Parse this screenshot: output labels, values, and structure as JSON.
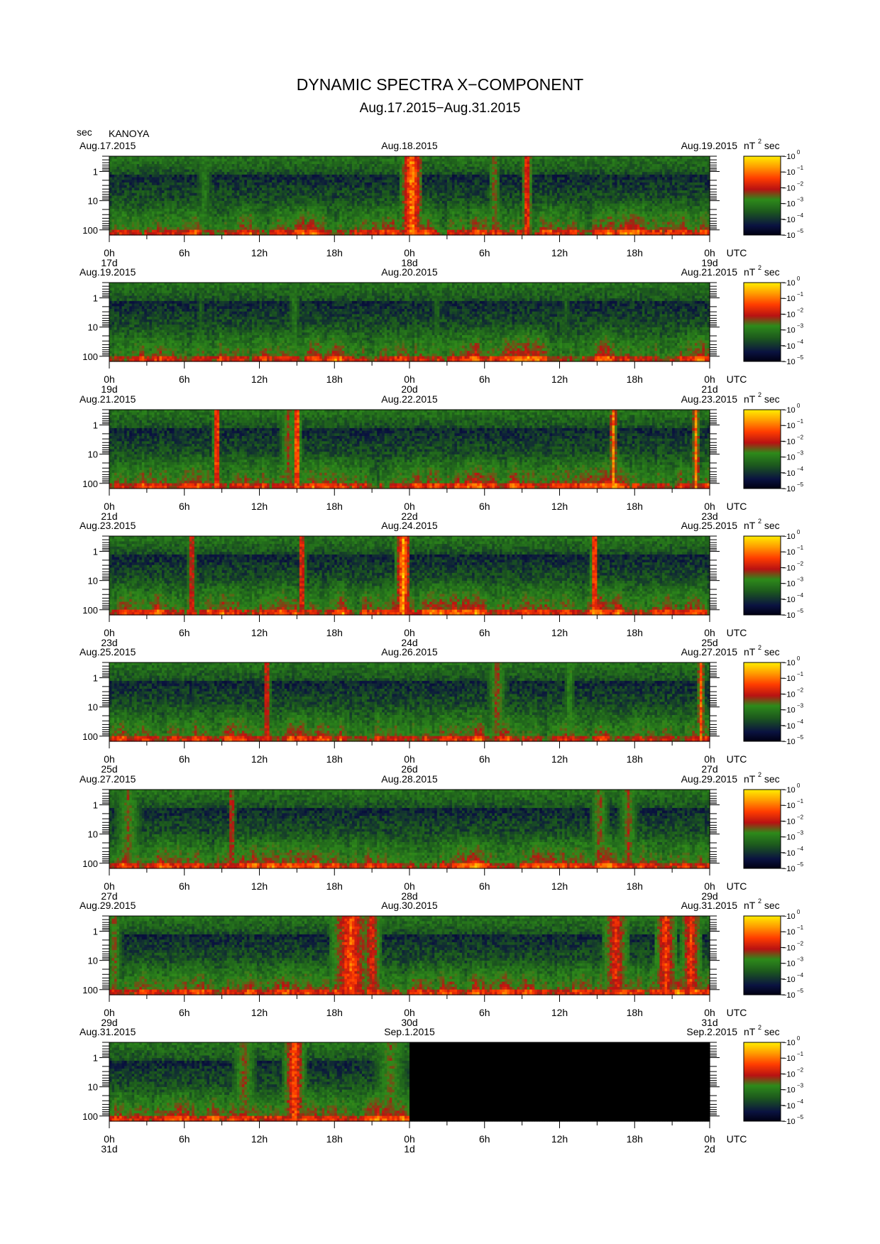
{
  "title": "DYNAMIC SPECTRA X−COMPONENT",
  "subtitle": "Aug.17.2015−Aug.31.2015",
  "y_unit_label": "sec",
  "station": "KANOYA",
  "colorbar_unit": {
    "base": "nT",
    "sup": "2",
    "tail": "sec"
  },
  "colorbar_labels": [
    {
      "base": "10",
      "exp": "0"
    },
    {
      "base": "10",
      "exp": "−1"
    },
    {
      "base": "10",
      "exp": "−2"
    },
    {
      "base": "10",
      "exp": "−3"
    },
    {
      "base": "10",
      "exp": "−4"
    },
    {
      "base": "10",
      "exp": "−5"
    }
  ],
  "colors": {
    "scale": [
      "#000012",
      "#0a1240",
      "#1d5a1d",
      "#2e8a1a",
      "#b81212",
      "#ff3c00",
      "#ff9a00",
      "#ffee00"
    ],
    "nodata": "#000000"
  },
  "chart_data": [
    {
      "type": "heatmap",
      "panel": 1,
      "left_date": "Aug.17.2015",
      "center_date": "Aug.18.2015",
      "right_date": "Aug.19.2015",
      "x_ticks": [
        "0h",
        "6h",
        "12h",
        "18h",
        "0h",
        "6h",
        "12h",
        "18h",
        "0h"
      ],
      "day_ticks": [
        "17d",
        "18d",
        "19d"
      ],
      "x_unit": "UTC",
      "y_ticks": [
        "1",
        "10",
        "100"
      ],
      "ylim_sec": [
        0.3,
        150
      ],
      "y_scale": "log",
      "data_fraction": 1.0,
      "bursts_utc_hours": [
        {
          "h": 24.2,
          "w": 0.9,
          "i": 0.95
        },
        {
          "h": 33.4,
          "w": 0.4,
          "i": 0.85
        },
        {
          "h": 30.8,
          "w": 0.5,
          "i": 0.6
        },
        {
          "h": 7.6,
          "w": 0.7,
          "i": 0.45
        }
      ]
    },
    {
      "type": "heatmap",
      "panel": 2,
      "left_date": "Aug.19.2015",
      "center_date": "Aug.20.2015",
      "right_date": "Aug.21.2015",
      "x_ticks": [
        "0h",
        "6h",
        "12h",
        "18h",
        "0h",
        "6h",
        "12h",
        "18h",
        "0h"
      ],
      "day_ticks": [
        "19d",
        "20d",
        "21d"
      ],
      "x_unit": "UTC",
      "y_ticks": [
        "1",
        "10",
        "100"
      ],
      "ylim_sec": [
        0.3,
        150
      ],
      "y_scale": "log",
      "data_fraction": 1.0,
      "bursts_utc_hours": [
        {
          "h": 7.3,
          "w": 0.4,
          "i": 0.35
        },
        {
          "h": 14.8,
          "w": 0.5,
          "i": 0.45
        },
        {
          "h": 26.2,
          "w": 0.4,
          "i": 0.4
        },
        {
          "h": 36.5,
          "w": 0.5,
          "i": 0.35
        }
      ]
    },
    {
      "type": "heatmap",
      "panel": 3,
      "left_date": "Aug.21.2015",
      "center_date": "Aug.22.2015",
      "right_date": "Aug.23.2015",
      "x_ticks": [
        "0h",
        "6h",
        "12h",
        "18h",
        "0h",
        "6h",
        "12h",
        "18h",
        "0h"
      ],
      "day_ticks": [
        "21d",
        "22d",
        "23d"
      ],
      "x_unit": "UTC",
      "y_ticks": [
        "1",
        "10",
        "100"
      ],
      "ylim_sec": [
        0.3,
        150
      ],
      "y_scale": "log",
      "data_fraction": 1.0,
      "bursts_utc_hours": [
        {
          "h": 8.6,
          "w": 0.3,
          "i": 0.95
        },
        {
          "h": 15.0,
          "w": 0.3,
          "i": 1.0
        },
        {
          "h": 40.3,
          "w": 0.3,
          "i": 0.9
        },
        {
          "h": 46.9,
          "w": 0.3,
          "i": 0.9
        },
        {
          "h": 14.3,
          "w": 0.7,
          "i": 0.6
        }
      ]
    },
    {
      "type": "heatmap",
      "panel": 4,
      "left_date": "Aug.23.2015",
      "center_date": "Aug.24.2015",
      "right_date": "Aug.25.2015",
      "x_ticks": [
        "0h",
        "6h",
        "12h",
        "18h",
        "0h",
        "6h",
        "12h",
        "18h",
        "0h"
      ],
      "day_ticks": [
        "23d",
        "24d",
        "25d"
      ],
      "x_unit": "UTC",
      "y_ticks": [
        "1",
        "10",
        "100"
      ],
      "ylim_sec": [
        0.3,
        150
      ],
      "y_scale": "log",
      "data_fraction": 1.0,
      "bursts_utc_hours": [
        {
          "h": 6.6,
          "w": 0.3,
          "i": 0.8
        },
        {
          "h": 15.4,
          "w": 0.3,
          "i": 0.85
        },
        {
          "h": 23.5,
          "w": 0.6,
          "i": 1.0
        },
        {
          "h": 38.8,
          "w": 0.3,
          "i": 0.95
        }
      ]
    },
    {
      "type": "heatmap",
      "panel": 5,
      "left_date": "Aug.25.2015",
      "center_date": "Aug.26.2015",
      "right_date": "Aug.27.2015",
      "x_ticks": [
        "0h",
        "6h",
        "12h",
        "18h",
        "0h",
        "6h",
        "12h",
        "18h",
        "0h"
      ],
      "day_ticks": [
        "25d",
        "26d",
        "27d"
      ],
      "x_unit": "UTC",
      "y_ticks": [
        "1",
        "10",
        "100"
      ],
      "ylim_sec": [
        0.3,
        150
      ],
      "y_scale": "log",
      "data_fraction": 1.0,
      "bursts_utc_hours": [
        {
          "h": 12.6,
          "w": 0.3,
          "i": 0.8
        },
        {
          "h": 47.3,
          "w": 0.3,
          "i": 0.85
        },
        {
          "h": 31.0,
          "w": 0.8,
          "i": 0.6
        },
        {
          "h": 36.8,
          "w": 0.5,
          "i": 0.5
        }
      ]
    },
    {
      "type": "heatmap",
      "panel": 6,
      "left_date": "Aug.27.2015",
      "center_date": "Aug.28.2015",
      "right_date": "Aug.29.2015",
      "x_ticks": [
        "0h",
        "6h",
        "12h",
        "18h",
        "0h",
        "6h",
        "12h",
        "18h",
        "0h"
      ],
      "day_ticks": [
        "27d",
        "28d",
        "29d"
      ],
      "x_unit": "UTC",
      "y_ticks": [
        "1",
        "10",
        "100"
      ],
      "ylim_sec": [
        0.3,
        150
      ],
      "y_scale": "log",
      "data_fraction": 1.0,
      "bursts_utc_hours": [
        {
          "h": 9.8,
          "w": 0.3,
          "i": 0.75
        },
        {
          "h": 39.2,
          "w": 0.8,
          "i": 0.6
        },
        {
          "h": 41.5,
          "w": 0.8,
          "i": 0.6
        },
        {
          "h": 1.5,
          "w": 1.2,
          "i": 0.55
        }
      ]
    },
    {
      "type": "heatmap",
      "panel": 7,
      "left_date": "Aug.29.2015",
      "center_date": "Aug.30.2015",
      "right_date": "Aug.31.2015",
      "x_ticks": [
        "0h",
        "6h",
        "12h",
        "18h",
        "0h",
        "6h",
        "12h",
        "18h",
        "0h"
      ],
      "day_ticks": [
        "29d",
        "30d",
        "31d"
      ],
      "x_unit": "UTC",
      "y_ticks": [
        "1",
        "10",
        "100"
      ],
      "ylim_sec": [
        0.3,
        150
      ],
      "y_scale": "log",
      "data_fraction": 1.0,
      "bursts_utc_hours": [
        {
          "h": 19.3,
          "w": 1.6,
          "i": 0.85
        },
        {
          "h": 21.0,
          "w": 0.8,
          "i": 0.75
        },
        {
          "h": 40.5,
          "w": 1.2,
          "i": 0.75
        },
        {
          "h": 44.5,
          "w": 1.0,
          "i": 0.8
        },
        {
          "h": 46.5,
          "w": 0.9,
          "i": 0.8
        },
        {
          "h": 0.4,
          "w": 0.6,
          "i": 0.6
        }
      ]
    },
    {
      "type": "heatmap",
      "panel": 8,
      "left_date": "Aug.31.2015",
      "center_date": "Sep.1.2015",
      "right_date": "Sep.2.2015",
      "x_ticks": [
        "0h",
        "6h",
        "12h",
        "18h",
        "0h",
        "6h",
        "12h",
        "18h",
        "0h"
      ],
      "day_ticks": [
        "31d",
        "1d",
        "2d"
      ],
      "x_unit": "UTC",
      "y_ticks": [
        "1",
        "10",
        "100"
      ],
      "ylim_sec": [
        0.3,
        150
      ],
      "y_scale": "log",
      "data_fraction": 0.5,
      "bursts_utc_hours": [
        {
          "h": 10.8,
          "w": 1.0,
          "i": 0.6
        },
        {
          "h": 14.8,
          "w": 0.9,
          "i": 0.85
        },
        {
          "h": 22.5,
          "w": 1.5,
          "i": 0.55
        }
      ]
    }
  ]
}
